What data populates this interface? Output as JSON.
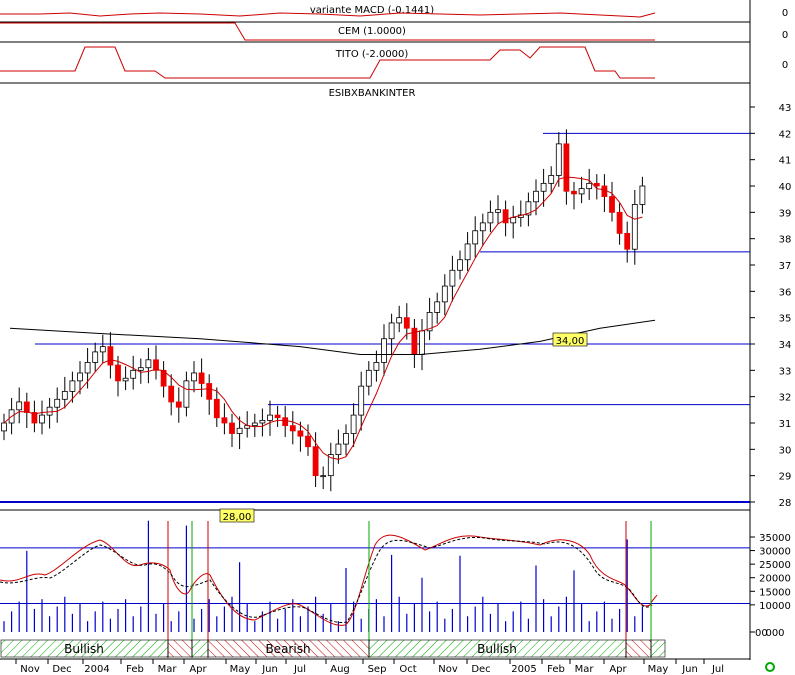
{
  "chart_data": {
    "type": "candlestick",
    "symbol": "ESIBXBANKINTER",
    "indicator_panels": [
      {
        "name": "variante MACD (-0.1441)",
        "axis_value": "0"
      },
      {
        "name": "CEM (1.0000)",
        "axis_value": "0"
      },
      {
        "name": "TITO (-2.0000)",
        "axis_value": "0"
      }
    ],
    "price_axis": {
      "min": 27.5,
      "max": 43.5,
      "ticks": [
        43,
        42,
        41,
        40,
        39,
        38,
        37,
        36,
        35,
        34,
        33,
        32,
        31,
        30,
        29,
        28
      ]
    },
    "volume_axis": {
      "ticks": [
        "35000",
        "30000",
        "25000",
        "20000",
        "15000",
        "10000",
        "000"
      ],
      "unit": "00"
    },
    "x_labels": [
      "Nov",
      "Dec",
      "2004",
      "Feb",
      "Mar",
      "Apr",
      "May",
      "Jun",
      "Jul",
      "Aug",
      "Sep",
      "Oct",
      "Nov",
      "Dec",
      "2005",
      "Feb",
      "Mar",
      "Apr",
      "May",
      "Jun",
      "Jul"
    ],
    "horizontal_levels": [
      42.0,
      37.5,
      34.0,
      31.7,
      28.0
    ],
    "labels": [
      {
        "text": "34,00",
        "value": 34.0
      },
      {
        "text": "28,00",
        "value": 28.0
      }
    ],
    "trend_bands": [
      "Bullish",
      "Bearish",
      "Bullish"
    ],
    "closes": [
      31.0,
      31.5,
      31.8,
      31.4,
      31.0,
      31.3,
      31.6,
      31.9,
      32.2,
      32.6,
      32.9,
      33.3,
      33.7,
      33.9,
      33.2,
      32.6,
      32.7,
      33.0,
      33.1,
      33.4,
      33.0,
      32.4,
      31.8,
      31.6,
      32.6,
      32.9,
      32.5,
      31.9,
      31.2,
      31.0,
      30.6,
      30.8,
      30.9,
      31.0,
      31.1,
      31.3,
      31.2,
      30.9,
      30.7,
      30.5,
      30.1,
      29.0,
      29.0,
      29.8,
      30.2,
      30.6,
      31.3,
      32.4,
      33.0,
      33.3,
      34.2,
      34.8,
      35.0,
      34.6,
      33.6,
      34.5,
      35.2,
      35.6,
      36.2,
      36.8,
      37.2,
      37.8,
      38.3,
      38.6,
      39.0,
      39.1,
      38.6,
      38.8,
      38.9,
      39.4,
      39.8,
      40.1,
      40.4,
      41.6,
      39.8,
      39.7,
      39.9,
      40.1,
      40.0,
      39.6,
      39.0,
      38.2,
      37.6,
      39.3,
      40.0
    ],
    "volume_max": 35000
  }
}
